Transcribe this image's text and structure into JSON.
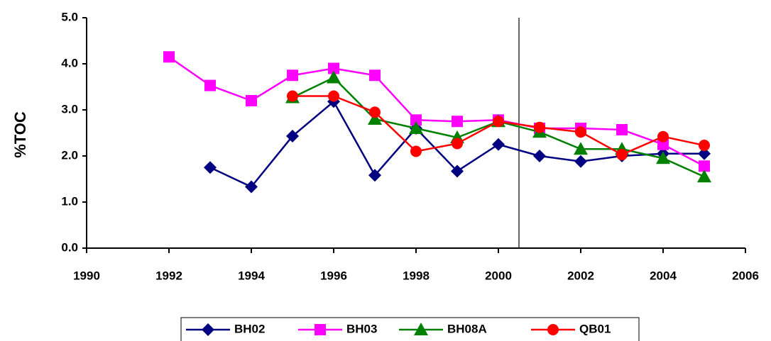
{
  "chart_data": {
    "type": "line",
    "y_label": "%TOC",
    "x": [
      1992,
      1993,
      1994,
      1995,
      1996,
      1997,
      1998,
      1999,
      2000,
      2001,
      2002,
      2003,
      2004,
      2005
    ],
    "series": [
      {
        "name": "BH02",
        "color": "#000080",
        "marker": "diamond",
        "values": [
          null,
          1.75,
          1.33,
          2.43,
          3.18,
          1.58,
          2.6,
          1.67,
          2.25,
          2.0,
          1.88,
          2.0,
          2.05,
          2.05
        ]
      },
      {
        "name": "BH03",
        "color": "#ff00ff",
        "marker": "square",
        "values": [
          4.15,
          3.53,
          3.2,
          3.75,
          3.9,
          3.75,
          2.78,
          2.75,
          2.78,
          2.6,
          2.6,
          2.57,
          2.25,
          1.78
        ]
      },
      {
        "name": "BH08A",
        "color": "#008000",
        "marker": "triangle",
        "values": [
          null,
          null,
          null,
          3.27,
          3.7,
          2.8,
          2.6,
          2.4,
          2.75,
          2.52,
          2.15,
          2.15,
          1.95,
          1.55
        ]
      },
      {
        "name": "QB01",
        "color": "#ff0000",
        "marker": "circle",
        "values": [
          null,
          null,
          null,
          3.3,
          3.3,
          2.95,
          2.1,
          2.27,
          2.75,
          2.62,
          2.52,
          2.03,
          2.42,
          2.23
        ]
      }
    ],
    "reference_line_x": 2000.5,
    "xlim": [
      1990,
      2006
    ],
    "xticks": [
      1990,
      1992,
      1994,
      1996,
      1998,
      2000,
      2002,
      2004,
      2006
    ],
    "ylim": [
      0,
      5
    ],
    "yticks": [
      {
        "value": 0,
        "label": "0.0"
      },
      {
        "value": 1,
        "label": "1.0"
      },
      {
        "value": 2,
        "label": "2.0"
      },
      {
        "value": 3,
        "label": "3.0"
      },
      {
        "value": 4,
        "label": "4.0"
      },
      {
        "value": 5,
        "label": "5.0"
      }
    ],
    "grid": false,
    "legend": "bottom"
  }
}
